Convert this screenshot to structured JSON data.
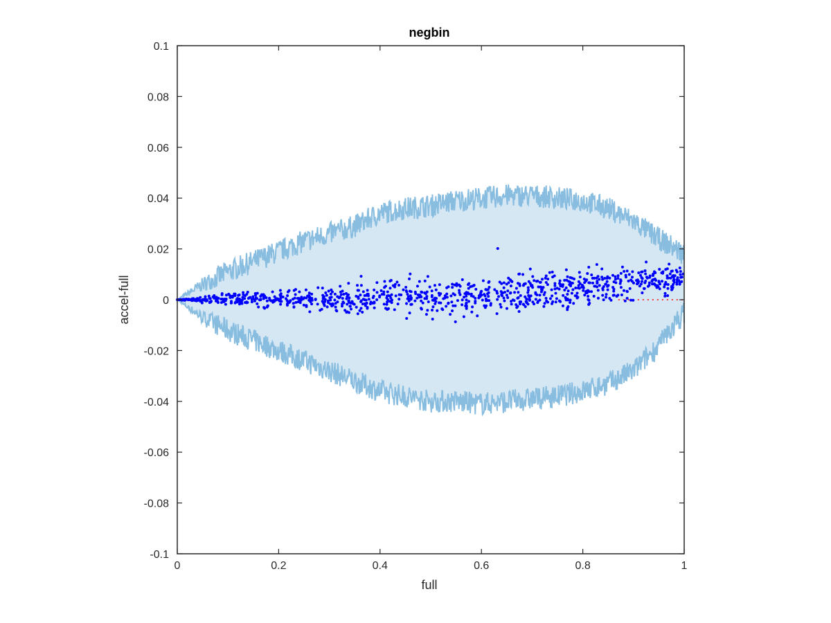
{
  "chart_data": {
    "type": "scatter",
    "title": "negbin",
    "xlabel": "full",
    "ylabel": "accel-full",
    "xlim": [
      0,
      1
    ],
    "ylim": [
      -0.1,
      0.1
    ],
    "xticks": [
      "0",
      "0.2",
      "0.4",
      "0.6",
      "0.8",
      "1"
    ],
    "yticks": [
      "-0.1",
      "-0.08",
      "-0.06",
      "-0.04",
      "-0.02",
      "0",
      "0.02",
      "0.04",
      "0.06",
      "0.08",
      "0.1"
    ],
    "grid": false,
    "legend": "none",
    "band": {
      "description_points_x": [
        0,
        0.05,
        0.1,
        0.15,
        0.2,
        0.25,
        0.3,
        0.35,
        0.4,
        0.45,
        0.5,
        0.55,
        0.6,
        0.65,
        0.7,
        0.75,
        0.8,
        0.85,
        0.9,
        0.95,
        1.0
      ],
      "upper": [
        0,
        0.006,
        0.011,
        0.015,
        0.019,
        0.023,
        0.026,
        0.029,
        0.034,
        0.036,
        0.037,
        0.039,
        0.04,
        0.041,
        0.041,
        0.04,
        0.039,
        0.036,
        0.031,
        0.024,
        0.018
      ],
      "lower": [
        0,
        -0.007,
        -0.012,
        -0.016,
        -0.02,
        -0.024,
        -0.028,
        -0.032,
        -0.036,
        -0.038,
        -0.04,
        -0.04,
        -0.041,
        -0.04,
        -0.039,
        -0.038,
        -0.036,
        -0.033,
        -0.028,
        -0.018,
        -0.005
      ],
      "noise": 0.0045,
      "fill_color": "#d6e7f4",
      "line_color": "#88bde0"
    },
    "series": [
      {
        "trend_x": [
          0,
          0.1,
          0.2,
          0.3,
          0.4,
          0.5,
          0.6,
          0.7,
          0.8,
          0.9,
          1.0
        ],
        "trend_y": [
          0,
          0.0002,
          0.0004,
          0.0006,
          0.0008,
          0.001,
          0.0015,
          0.0025,
          0.004,
          0.0065,
          0.009
        ],
        "spread_y": [
          0,
          0.001,
          0.0018,
          0.0025,
          0.003,
          0.0033,
          0.0035,
          0.0036,
          0.0035,
          0.003,
          0.0025
        ],
        "n_points": 1000,
        "color": "#0000ff"
      }
    ],
    "reference_line": {
      "y": 0,
      "x_from": 0.87,
      "x_to": 1.0,
      "color": "#ff0000",
      "style": "dotted"
    },
    "colors": {
      "axis": "#262626",
      "background": "#ffffff"
    }
  }
}
